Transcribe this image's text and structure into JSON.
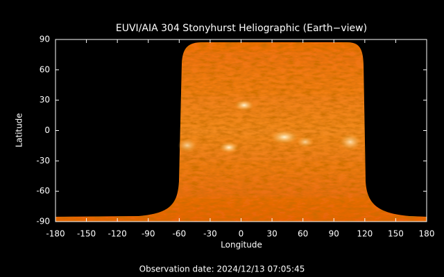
{
  "chart_data": {
    "type": "map",
    "title": "EUVI/AIA 304 Stonyhurst Heliographic (Earth−view)",
    "xlabel": "Longitude",
    "ylabel": "Latitude",
    "xlim": [
      -180,
      180
    ],
    "ylim": [
      -90,
      90
    ],
    "xticks": [
      -180,
      -150,
      -120,
      -90,
      -60,
      -30,
      0,
      30,
      60,
      90,
      120,
      150,
      180
    ],
    "yticks": [
      -90,
      -60,
      -30,
      0,
      30,
      60,
      90
    ],
    "footer": "Observation date: 2024/12/13 07:05:45"
  }
}
